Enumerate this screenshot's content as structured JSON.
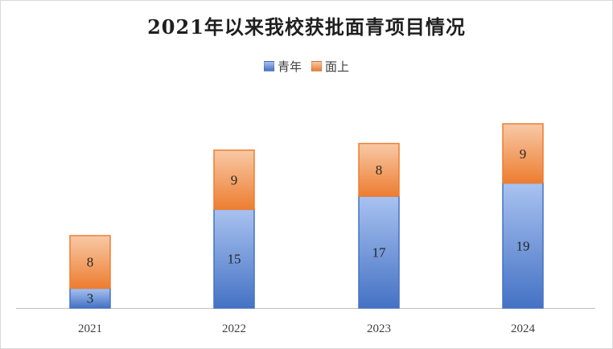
{
  "chart_data": {
    "type": "bar",
    "stacked": true,
    "title": "2021年以来我校获批面青项目情况",
    "categories": [
      "2021",
      "2022",
      "2023",
      "2024"
    ],
    "series": [
      {
        "name": "青年",
        "values": [
          3,
          15,
          17,
          19
        ],
        "color_top": "#a9c2f0",
        "color_bottom": "#4472c4",
        "stroke": "#4472c4"
      },
      {
        "name": "面上",
        "values": [
          8,
          9,
          8,
          9
        ],
        "color_top": "#f8c9a6",
        "color_bottom": "#ed7d31",
        "stroke": "#ed7d31"
      }
    ],
    "ylim": [
      0,
      28
    ],
    "grid": false,
    "legend": "top",
    "data_labels": true,
    "xlabel": "",
    "ylabel": ""
  }
}
